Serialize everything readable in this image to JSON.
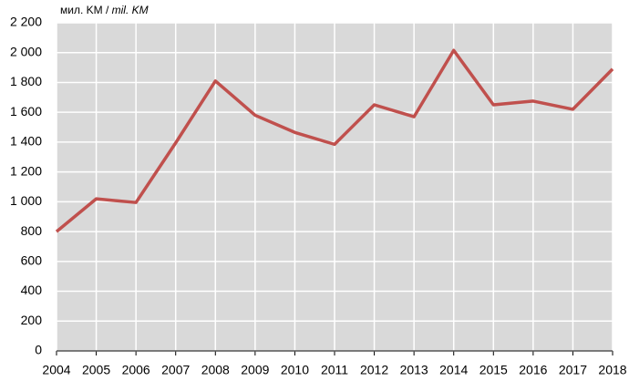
{
  "chart_data": {
    "type": "line",
    "y_label": {
      "local": "мил. KM /",
      "en": "mil. KM"
    },
    "categories": [
      "2004",
      "2005",
      "2006",
      "2007",
      "2008",
      "2009",
      "2010",
      "2011",
      "2012",
      "2013",
      "2014",
      "2015",
      "2016",
      "2017",
      "2018"
    ],
    "series": [
      {
        "name": "mil. KM",
        "color": "#c0504d",
        "values": [
          800,
          1020,
          995,
          1395,
          1810,
          1580,
          1465,
          1385,
          1650,
          1570,
          2015,
          1650,
          1675,
          1620,
          1890
        ]
      }
    ],
    "ylim": [
      0,
      2200
    ],
    "yticks": [
      0,
      200,
      400,
      600,
      800,
      {
        "value": 1000,
        "label": "1 000"
      },
      {
        "value": 1200,
        "label": "1 200"
      },
      {
        "value": 1400,
        "label": "1 400"
      },
      {
        "value": 1600,
        "label": "1 600"
      },
      {
        "value": 1800,
        "label": "1 800"
      },
      {
        "value": 2000,
        "label": "2 000"
      },
      {
        "value": 2200,
        "label": "2 200"
      }
    ],
    "grid": true,
    "background": "#d9d9d9"
  }
}
